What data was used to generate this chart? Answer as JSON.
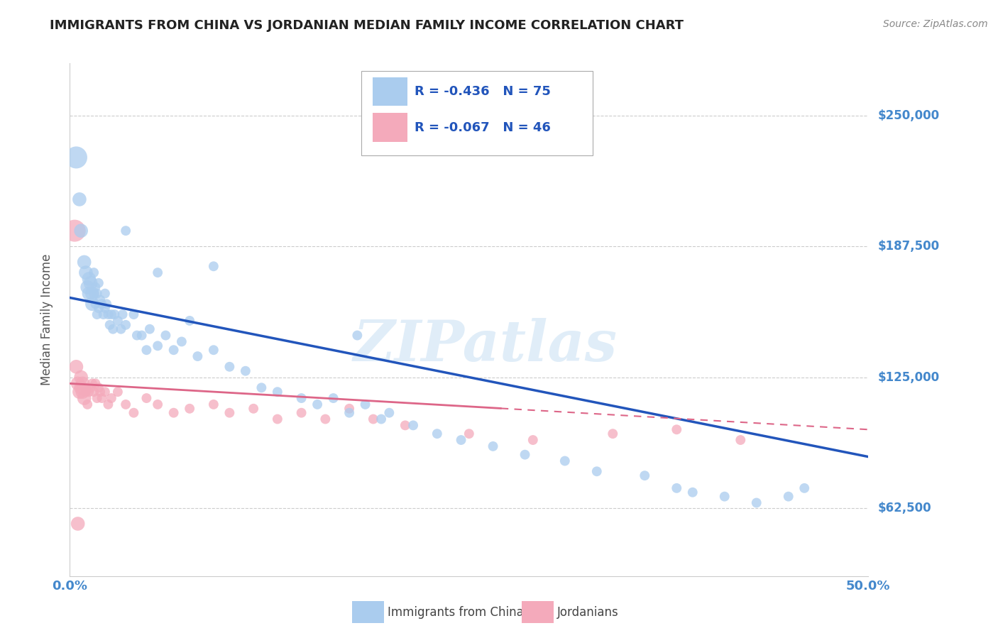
{
  "title": "IMMIGRANTS FROM CHINA VS JORDANIAN MEDIAN FAMILY INCOME CORRELATION CHART",
  "source": "Source: ZipAtlas.com",
  "ylabel": "Median Family Income",
  "yticks": [
    62500,
    125000,
    187500,
    250000
  ],
  "ytick_labels": [
    "$62,500",
    "$125,000",
    "$187,500",
    "$250,000"
  ],
  "xlim": [
    0.0,
    0.5
  ],
  "ylim": [
    30000,
    275000
  ],
  "bottom_legend1": "Immigrants from China",
  "bottom_legend2": "Jordanians",
  "china_color": "#aaccee",
  "jordan_color": "#f4aabb",
  "china_line_color": "#2255bb",
  "jordan_line_color": "#dd6688",
  "watermark": "ZIPatlas",
  "china_R": -0.436,
  "jordan_R": -0.067,
  "china_N": 75,
  "jordan_N": 46,
  "background_color": "#ffffff",
  "grid_color": "#cccccc",
  "title_color": "#222222",
  "right_tick_color": "#4488cc",
  "china_line_x0": 0.0,
  "china_line_y0": 163000,
  "china_line_x1": 0.5,
  "china_line_y1": 87000,
  "jordan_line_x0": 0.0,
  "jordan_line_y0": 122000,
  "jordan_line_x1": 0.5,
  "jordan_line_y1": 100000,
  "china_scatter_x": [
    0.004,
    0.006,
    0.007,
    0.009,
    0.01,
    0.011,
    0.012,
    0.012,
    0.013,
    0.014,
    0.014,
    0.015,
    0.015,
    0.016,
    0.016,
    0.017,
    0.017,
    0.018,
    0.018,
    0.019,
    0.02,
    0.021,
    0.022,
    0.022,
    0.023,
    0.024,
    0.025,
    0.026,
    0.027,
    0.028,
    0.03,
    0.032,
    0.033,
    0.035,
    0.04,
    0.042,
    0.045,
    0.048,
    0.05,
    0.055,
    0.06,
    0.065,
    0.07,
    0.08,
    0.09,
    0.1,
    0.11,
    0.12,
    0.13,
    0.145,
    0.155,
    0.165,
    0.175,
    0.185,
    0.195,
    0.2,
    0.215,
    0.23,
    0.245,
    0.265,
    0.285,
    0.31,
    0.33,
    0.36,
    0.38,
    0.39,
    0.41,
    0.43,
    0.45,
    0.46,
    0.035,
    0.055,
    0.075,
    0.09,
    0.18
  ],
  "china_scatter_y": [
    230000,
    210000,
    195000,
    180000,
    175000,
    168000,
    172000,
    165000,
    170000,
    165000,
    160000,
    175000,
    165000,
    168000,
    160000,
    165000,
    155000,
    170000,
    158000,
    162000,
    160000,
    155000,
    165000,
    158000,
    160000,
    155000,
    150000,
    155000,
    148000,
    155000,
    152000,
    148000,
    155000,
    150000,
    155000,
    145000,
    145000,
    138000,
    148000,
    140000,
    145000,
    138000,
    142000,
    135000,
    138000,
    130000,
    128000,
    120000,
    118000,
    115000,
    112000,
    115000,
    108000,
    112000,
    105000,
    108000,
    102000,
    98000,
    95000,
    92000,
    88000,
    85000,
    80000,
    78000,
    72000,
    70000,
    68000,
    65000,
    68000,
    72000,
    195000,
    175000,
    152000,
    178000,
    145000
  ],
  "jordan_scatter_x": [
    0.003,
    0.004,
    0.005,
    0.006,
    0.007,
    0.007,
    0.008,
    0.008,
    0.009,
    0.01,
    0.01,
    0.011,
    0.012,
    0.013,
    0.014,
    0.015,
    0.016,
    0.017,
    0.018,
    0.019,
    0.02,
    0.022,
    0.024,
    0.026,
    0.03,
    0.035,
    0.04,
    0.048,
    0.055,
    0.065,
    0.075,
    0.09,
    0.1,
    0.115,
    0.13,
    0.145,
    0.16,
    0.175,
    0.19,
    0.21,
    0.25,
    0.29,
    0.34,
    0.38,
    0.42,
    0.005
  ],
  "jordan_scatter_y": [
    195000,
    130000,
    122000,
    118000,
    120000,
    125000,
    118000,
    122000,
    115000,
    120000,
    118000,
    112000,
    118000,
    120000,
    122000,
    118000,
    122000,
    115000,
    120000,
    118000,
    115000,
    118000,
    112000,
    115000,
    118000,
    112000,
    108000,
    115000,
    112000,
    108000,
    110000,
    112000,
    108000,
    110000,
    105000,
    108000,
    105000,
    110000,
    105000,
    102000,
    98000,
    95000,
    98000,
    100000,
    95000,
    55000
  ]
}
